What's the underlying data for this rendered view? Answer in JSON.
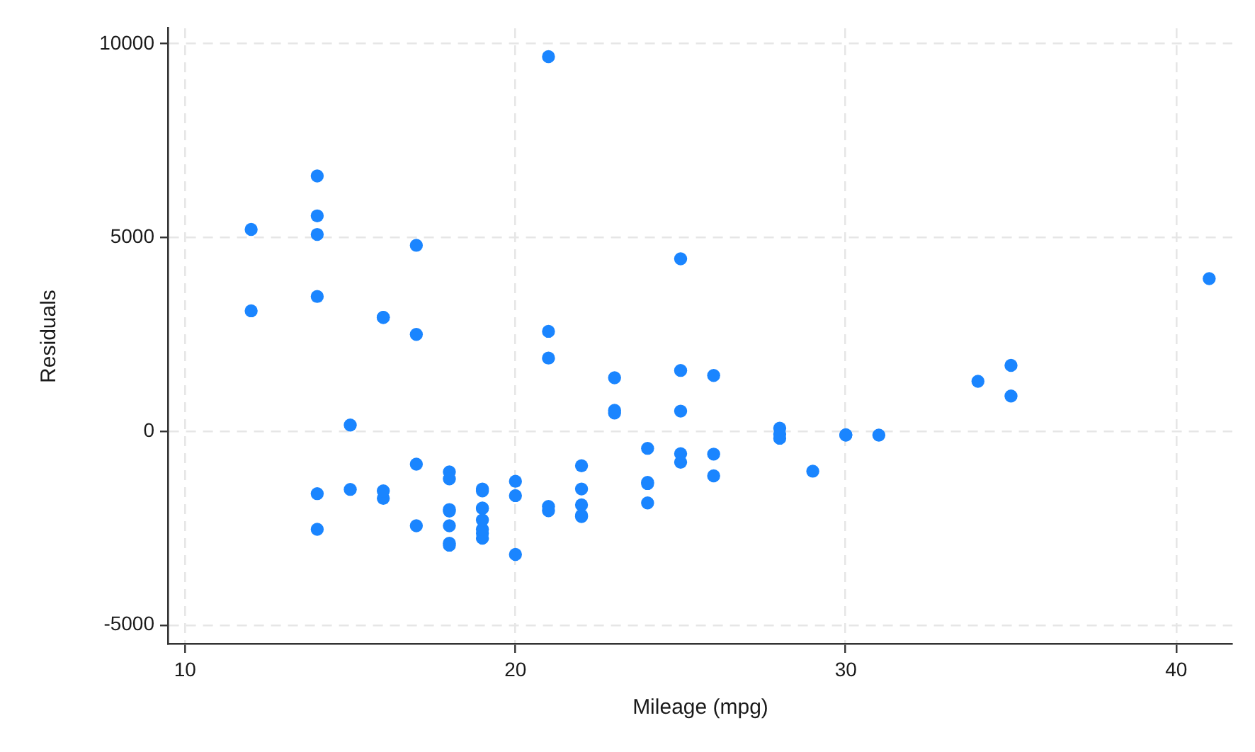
{
  "chart_data": {
    "type": "scatter",
    "xlabel": "Mileage (mpg)",
    "ylabel": "Residuals",
    "xlim": [
      9.5,
      41.7
    ],
    "ylim": [
      -5500,
      10400
    ],
    "xticks": [
      10,
      20,
      30,
      40
    ],
    "yticks": [
      -5000,
      0,
      5000,
      10000
    ],
    "grid": true,
    "marker": "circle",
    "x": [
      12,
      12,
      14,
      14,
      14,
      14,
      14,
      14,
      15,
      15,
      16,
      16,
      16,
      16,
      17,
      17,
      17,
      17,
      18,
      18,
      18,
      18,
      18,
      18,
      18,
      19,
      19,
      19,
      19,
      19,
      19,
      19,
      19,
      20,
      20,
      20,
      21,
      21,
      21,
      21,
      21,
      22,
      22,
      22,
      22,
      22,
      23,
      23,
      23,
      24,
      24,
      24,
      24,
      25,
      25,
      25,
      25,
      25,
      26,
      26,
      26,
      28,
      28,
      28,
      29,
      30,
      30,
      31,
      34,
      35,
      35,
      41
    ],
    "series": [
      {
        "color": "#1a85ff",
        "values": [
          3110,
          5210,
          3480,
          6590,
          5560,
          -2530,
          -1610,
          5080,
          160,
          -1500,
          2940,
          -1730,
          -1540,
          2940,
          -2440,
          -850,
          2500,
          4800,
          -2940,
          -2440,
          -2060,
          -2890,
          -2020,
          -1050,
          -1230,
          -2630,
          -2760,
          -1540,
          -1980,
          -2530,
          -1490,
          -1990,
          -2290,
          -1660,
          -1290,
          -3180,
          9670,
          -2050,
          2580,
          1890,
          -1940,
          -1900,
          -2200,
          -1490,
          -890,
          -2170,
          540,
          470,
          1380,
          -1850,
          -1320,
          -1350,
          -440,
          -800,
          4450,
          520,
          -580,
          1570,
          -590,
          1440,
          -1150,
          -180,
          80,
          -70,
          -1030,
          -100,
          -90,
          -100,
          1290,
          1700,
          910,
          3940
        ]
      }
    ]
  }
}
